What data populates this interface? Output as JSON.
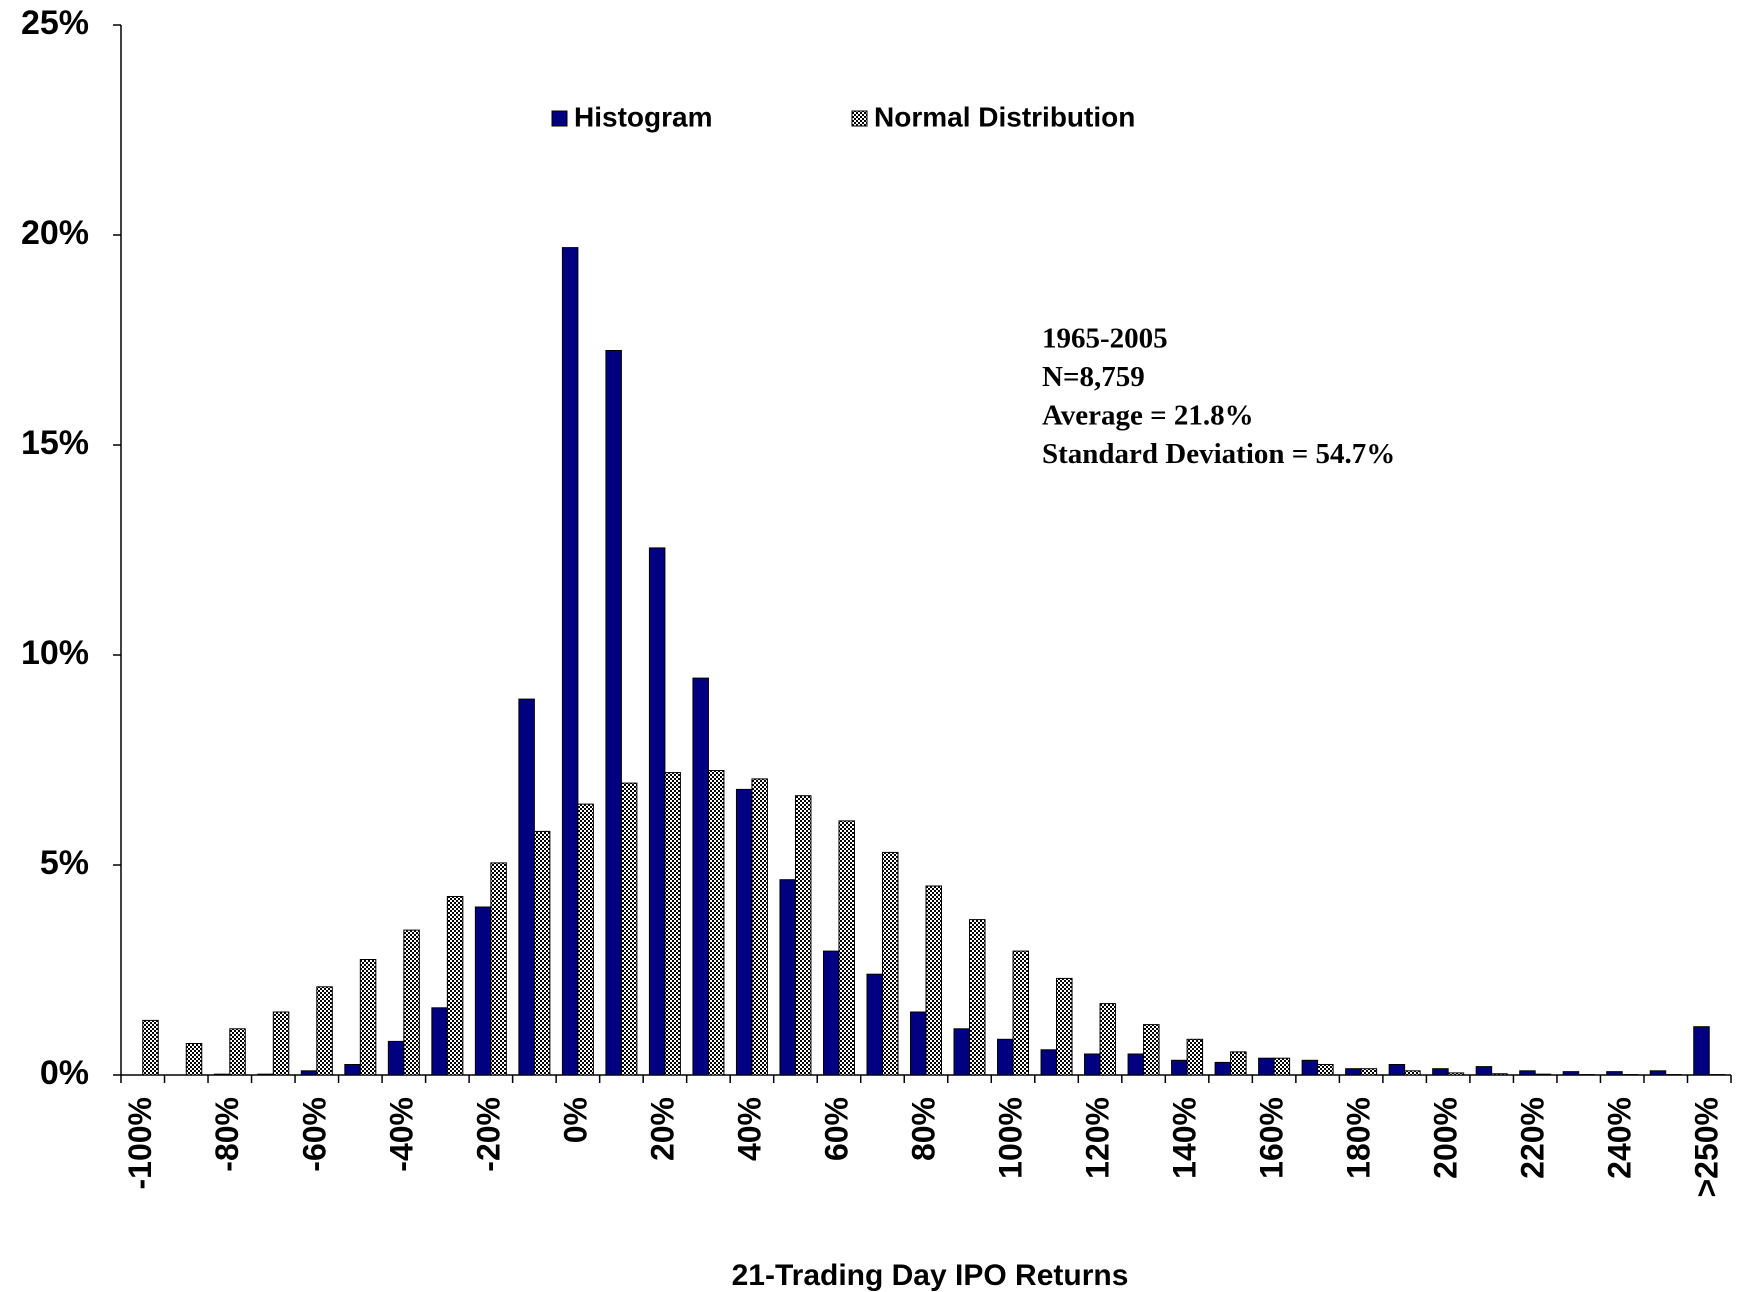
{
  "chart_data": {
    "type": "bar",
    "x_label": "21-Trading Day IPO Returns",
    "annotations": [
      "1965-2005",
      "N=8,759",
      "Average = 21.8%",
      "Standard Deviation = 54.7%"
    ],
    "categories": [
      "-100%",
      null,
      "-80%",
      null,
      "-60%",
      null,
      "-40%",
      null,
      "-20%",
      null,
      "0%",
      null,
      "20%",
      null,
      "40%",
      null,
      "60%",
      null,
      "80%",
      null,
      "100%",
      null,
      "120%",
      null,
      "140%",
      null,
      "160%",
      null,
      "180%",
      null,
      "200%",
      null,
      "220%",
      null,
      "240%",
      null,
      ">250%"
    ],
    "series": [
      {
        "name": "Histogram",
        "color": "#000080",
        "pattern": "solid",
        "values": [
          0,
          0,
          0.02,
          0.02,
          0.1,
          0.25,
          0.8,
          1.6,
          4.0,
          8.95,
          19.7,
          17.25,
          12.55,
          9.45,
          6.8,
          4.65,
          2.95,
          2.4,
          1.5,
          1.1,
          0.85,
          0.6,
          0.5,
          0.5,
          0.35,
          0.3,
          0.4,
          0.35,
          0.15,
          0.25,
          0.15,
          0.2,
          0.1,
          0.08,
          0.08,
          0.1,
          1.15
        ]
      },
      {
        "name": "Normal Distribution",
        "color": "#e8a0b4",
        "pattern": "dots",
        "values": [
          1.3,
          0.75,
          1.1,
          1.5,
          2.1,
          2.75,
          3.45,
          4.25,
          5.05,
          5.8,
          6.45,
          6.95,
          7.2,
          7.25,
          7.05,
          6.65,
          6.05,
          5.3,
          4.5,
          3.7,
          2.95,
          2.3,
          1.7,
          1.2,
          0.85,
          0.55,
          0.4,
          0.25,
          0.15,
          0.1,
          0.05,
          0.03,
          0.02,
          0.01,
          0.01,
          0.01,
          0.01
        ]
      }
    ],
    "ylim": [
      0,
      25
    ],
    "yticks": [
      {
        "value": 0,
        "label": "0%"
      },
      {
        "value": 5,
        "label": "5%"
      },
      {
        "value": 10,
        "label": "10%"
      },
      {
        "value": 15,
        "label": "15%"
      },
      {
        "value": 20,
        "label": "20%"
      },
      {
        "value": 25,
        "label": "25%"
      }
    ],
    "grid": false,
    "legend": "top"
  }
}
